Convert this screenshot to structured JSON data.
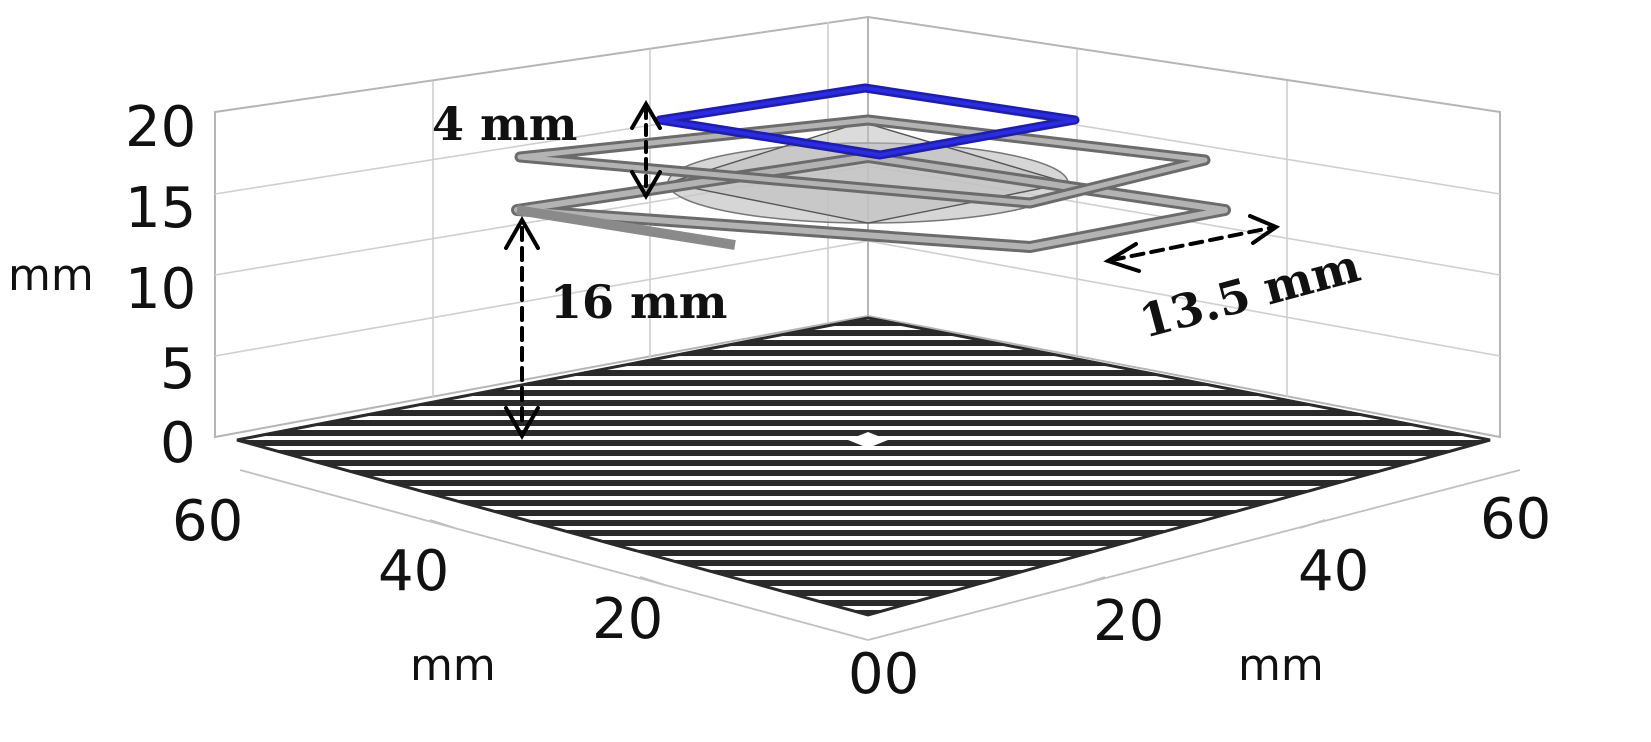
{
  "axes": {
    "z_ticks": [
      "0",
      "5",
      "10",
      "15",
      "20"
    ],
    "z_label": "mm",
    "left_ticks": [
      "60",
      "40",
      "20"
    ],
    "left_label": "mm",
    "right_ticks": [
      "20",
      "40",
      "60"
    ],
    "right_label": "mm",
    "origin_label": "00"
  },
  "dimensions": {
    "layer_spacing": "4 mm",
    "height_above_plane": "16 mm",
    "frame_side": "13.5 mm"
  },
  "colors": {
    "top_frame": "#2b2be0",
    "frames": "#8a8a8a",
    "cone": "#c8c8c8",
    "grid_lines": "#c9c9c9",
    "base_plate": "#2a2a2a"
  }
}
